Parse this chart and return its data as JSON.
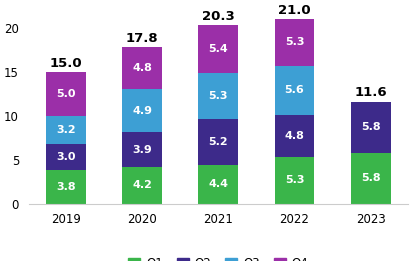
{
  "years": [
    "2019",
    "2020",
    "2021",
    "2022",
    "2023"
  ],
  "Q1": [
    3.8,
    4.2,
    4.4,
    5.3,
    5.8
  ],
  "Q2": [
    3.0,
    3.9,
    5.2,
    4.8,
    5.8
  ],
  "Q3": [
    3.2,
    4.9,
    5.3,
    5.6,
    0.0
  ],
  "Q4": [
    5.0,
    4.8,
    5.4,
    5.3,
    0.0
  ],
  "totals": [
    15.0,
    17.8,
    20.3,
    21.0,
    11.6
  ],
  "colors": {
    "Q1": "#3ab54a",
    "Q2": "#3d2a8a",
    "Q3": "#3d9fd4",
    "Q4": "#9b2fa8"
  },
  "ylim": [
    0,
    22
  ],
  "yticks": [
    0,
    5,
    10,
    15,
    20
  ],
  "bar_width": 0.52,
  "label_fontsize": 8.0,
  "total_fontsize": 9.5,
  "legend_fontsize": 8.5,
  "axis_fontsize": 8.5
}
